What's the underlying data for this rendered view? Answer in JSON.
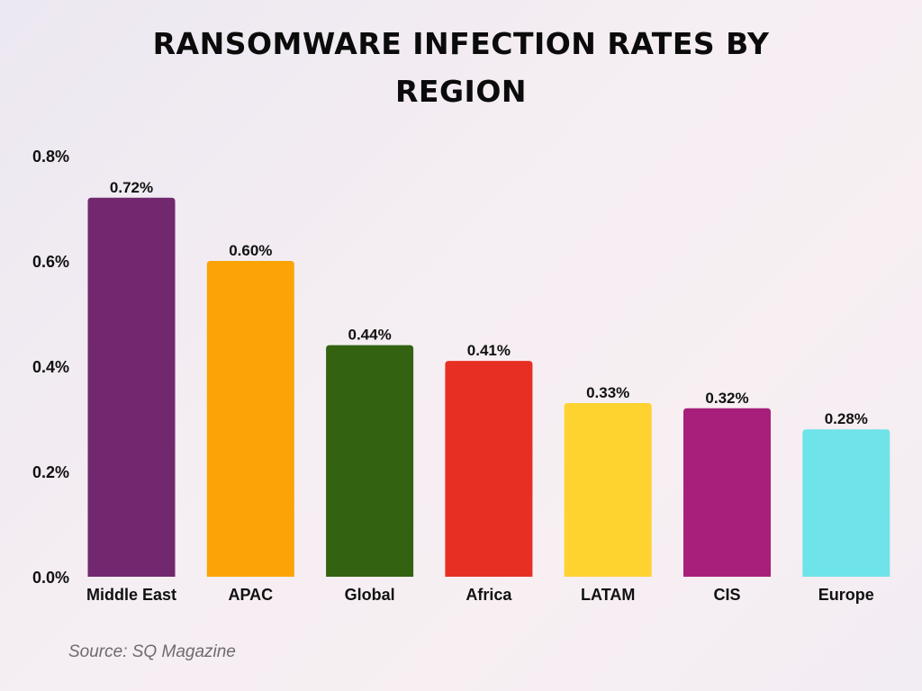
{
  "chart_data": {
    "type": "bar",
    "title": "RANSOMWARE INFECTION RATES BY REGION",
    "categories": [
      "Middle East",
      "APAC",
      "Global",
      "Africa",
      "LATAM",
      "CIS",
      "Europe"
    ],
    "values": [
      0.72,
      0.6,
      0.44,
      0.41,
      0.33,
      0.32,
      0.28
    ],
    "value_labels": [
      "0.72%",
      "0.60%",
      "0.44%",
      "0.41%",
      "0.33%",
      "0.32%",
      "0.28%"
    ],
    "colors": [
      "#72286f",
      "#fba307",
      "#336210",
      "#e82f24",
      "#fed22f",
      "#a81f7b",
      "#6ee3e8"
    ],
    "ylim": [
      0,
      0.8
    ],
    "yticks": [
      0,
      0.2,
      0.4,
      0.6,
      0.8
    ],
    "ytick_labels": [
      "0.0%",
      "0.2%",
      "0.4%",
      "0.6%",
      "0.8%"
    ],
    "xlabel": "",
    "ylabel": "",
    "grid": false,
    "legend": "none"
  },
  "source": "Source: SQ Magazine"
}
